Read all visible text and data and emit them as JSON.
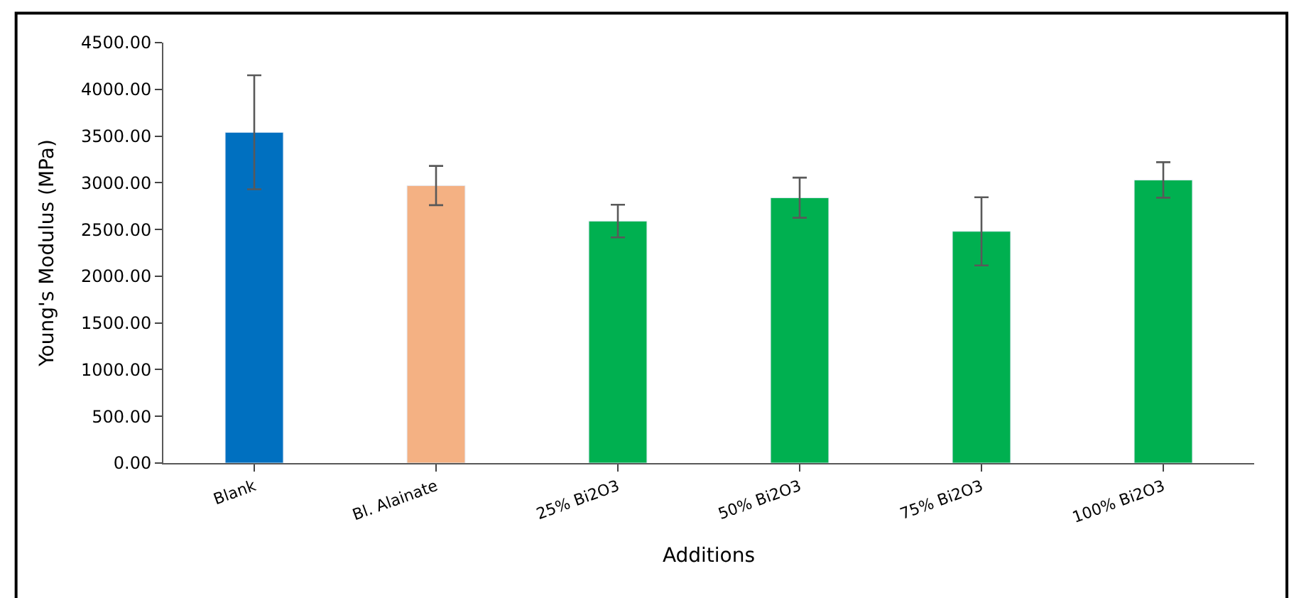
{
  "chart_data": {
    "type": "bar",
    "xlabel": "Additions",
    "ylabel": "Young's Modulus (MPa)",
    "categories": [
      "Blank",
      "Bl. Alainate",
      "25% Bi2O3",
      "50% Bi2O3",
      "75% Bi2O3",
      "100% Bi2O3"
    ],
    "values": [
      3540,
      2970,
      2590,
      2840,
      2480,
      3030
    ],
    "errors": [
      610,
      210,
      175,
      215,
      365,
      190
    ],
    "colors": [
      "#0070c0",
      "#f4b183",
      "#00b050",
      "#00b050",
      "#00b050",
      "#00b050"
    ],
    "ylim": [
      0,
      4500
    ],
    "yticks": [
      {
        "value": 0,
        "label": "0.00"
      },
      {
        "value": 500,
        "label": "500.00"
      },
      {
        "value": 1000,
        "label": "1000.00"
      },
      {
        "value": 1500,
        "label": "1500.00"
      },
      {
        "value": 2000,
        "label": "2000.00"
      },
      {
        "value": 2500,
        "label": "2500.00"
      },
      {
        "value": 3000,
        "label": "3000.00"
      },
      {
        "value": 3500,
        "label": "3500.00"
      },
      {
        "value": 4000,
        "label": "4000.00"
      },
      {
        "value": 4500,
        "label": "4500.00"
      }
    ]
  }
}
